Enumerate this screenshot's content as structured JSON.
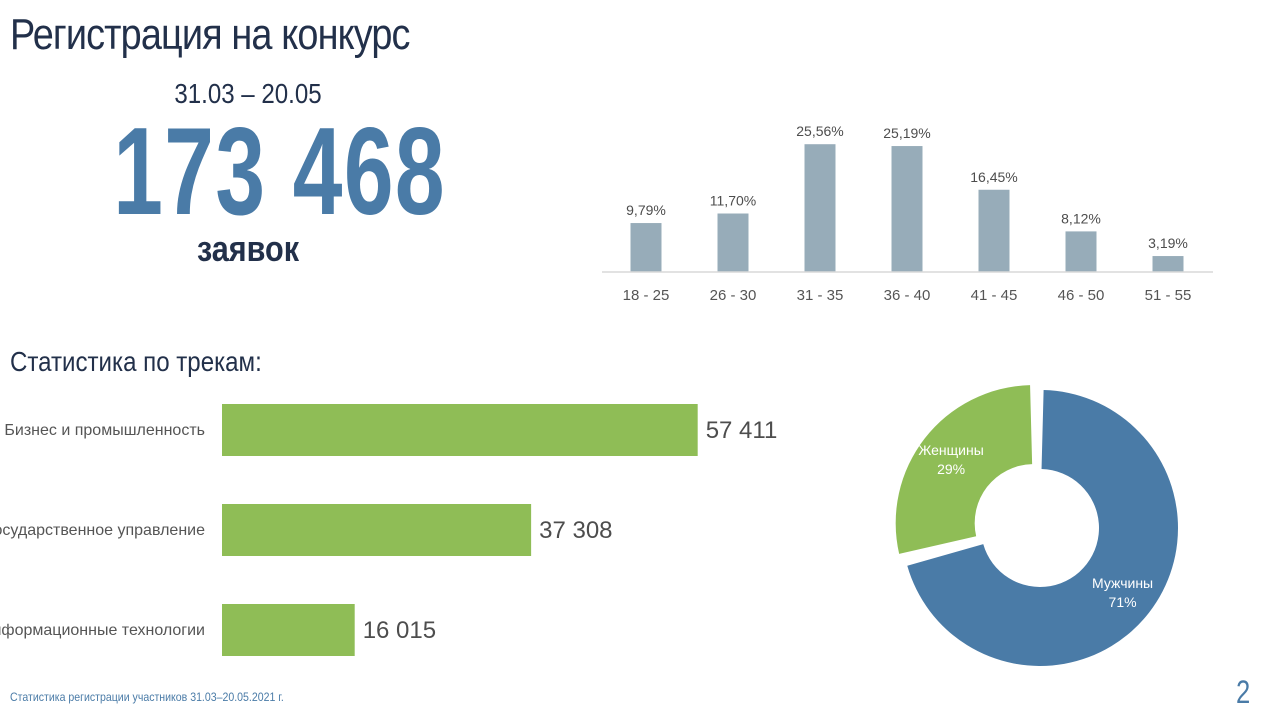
{
  "header": {
    "title": "Регистрация на конкурс",
    "period": "31.03 – 20.05",
    "total": "173 468",
    "total_caption": "заявок"
  },
  "tracks_title": "Статистика по трекам:",
  "footer": {
    "note": "Статистика регистрации участников 31.03–20.05.2021 г.",
    "page_number": "2"
  },
  "colors": {
    "age_bar": "#97acb9",
    "track_bar": "#8fbd56",
    "men": "#4a7ba7",
    "women": "#8fbd56",
    "text_dark": "#22304a",
    "text_gray": "#4d4d4d"
  },
  "chart_data": [
    {
      "type": "bar",
      "categories": [
        "18 - 25",
        "26 - 30",
        "31 - 35",
        "36 - 40",
        "41 - 45",
        "46 - 50",
        "51 - 55"
      ],
      "values": [
        9.79,
        11.7,
        25.56,
        25.19,
        16.45,
        8.12,
        3.19
      ],
      "data_labels": [
        "9,79%",
        "11,70%",
        "25,56%",
        "25,19%",
        "16,45%",
        "8,12%",
        "3,19%"
      ],
      "ylim": [
        0,
        30
      ],
      "grid": false,
      "legend": "none"
    },
    {
      "type": "bar",
      "orientation": "horizontal",
      "categories": [
        "Бизнес и промышленность",
        "Государственное управление",
        "Информационные технологии"
      ],
      "values": [
        57411,
        37308,
        16015
      ],
      "data_labels": [
        "57 411",
        "37 308",
        "16 015"
      ],
      "xlim": [
        0,
        70000
      ],
      "grid": false,
      "legend": "none"
    },
    {
      "type": "pie",
      "style": "donut",
      "categories": [
        "Мужчины",
        "Женщины"
      ],
      "values": [
        71,
        29
      ],
      "data_labels": [
        "71%",
        "29%"
      ],
      "legend": "none"
    }
  ]
}
